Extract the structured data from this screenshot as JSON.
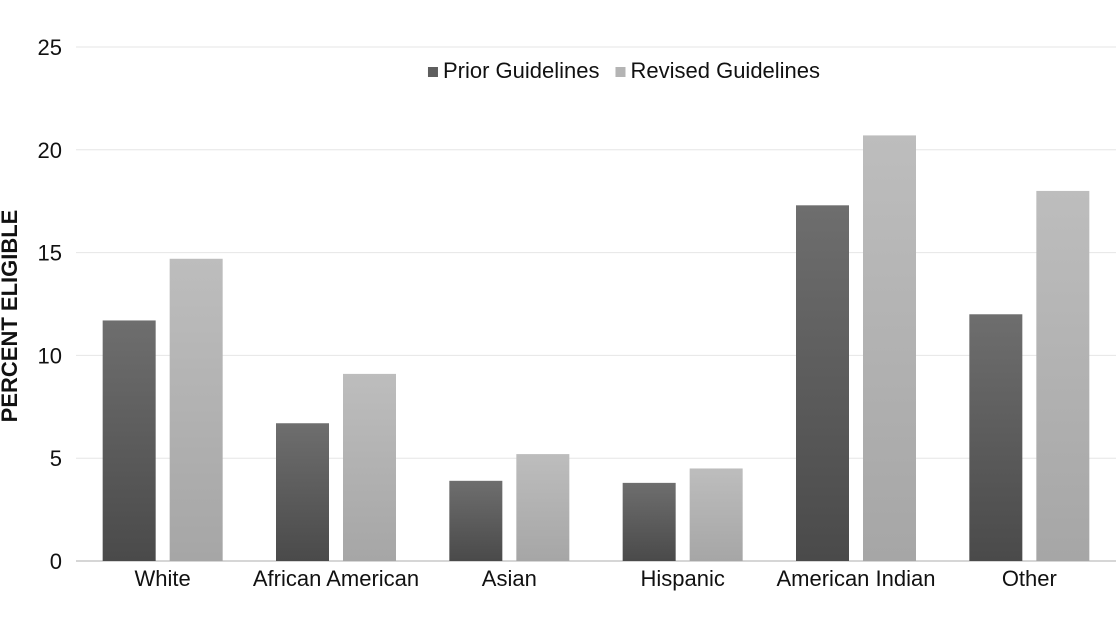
{
  "chart_data": {
    "type": "bar",
    "title": "",
    "xlabel": "",
    "ylabel": "PERCENT ELIGIBLE",
    "ylim": [
      0,
      25
    ],
    "yticks": [
      0,
      5,
      10,
      15,
      20,
      25
    ],
    "grid": true,
    "legend_position": "top-center",
    "categories": [
      "White",
      "African American",
      "Asian",
      "Hispanic",
      "American Indian",
      "Other"
    ],
    "series": [
      {
        "name": "Prior Guidelines",
        "values": [
          11.7,
          6.7,
          3.9,
          3.8,
          17.3,
          12.0
        ],
        "color": "#5e5e5e"
      },
      {
        "name": "Revised Guidelines",
        "values": [
          14.7,
          9.1,
          5.2,
          4.5,
          20.7,
          18.0
        ],
        "color": "#b4b4b4"
      }
    ]
  }
}
